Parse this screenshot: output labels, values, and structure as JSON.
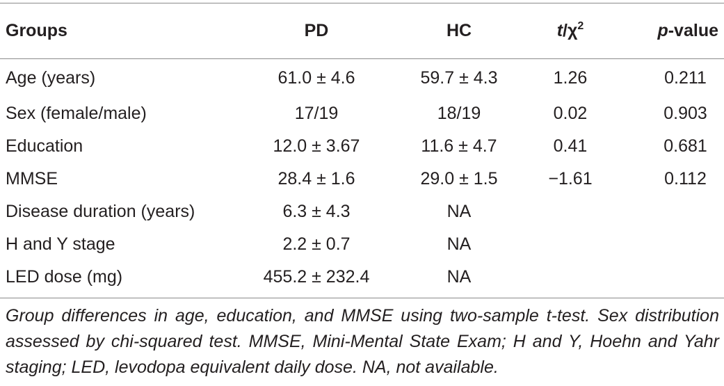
{
  "table": {
    "headers": {
      "groups": "Groups",
      "pd": "PD",
      "hc": "HC",
      "stat_t": "t",
      "stat_sep": "/χ",
      "stat_sup": "2",
      "p_italic": "p",
      "p_rest": "-value"
    },
    "rows": [
      {
        "label": "Age (years)",
        "pd": "61.0 ± 4.6",
        "hc": "59.7 ± 4.3",
        "stat": "1.26",
        "p": "0.211"
      },
      {
        "label": "Sex (female/male)",
        "pd": "17/19",
        "hc": "18/19",
        "stat": "0.02",
        "p": "0.903"
      },
      {
        "label": "Education",
        "pd": "12.0 ± 3.67",
        "hc": "11.6 ± 4.7",
        "stat": "0.41",
        "p": "0.681"
      },
      {
        "label": "MMSE",
        "pd": "28.4 ± 1.6",
        "hc": "29.0 ± 1.5",
        "stat": "−1.61",
        "p": "0.112"
      },
      {
        "label": "Disease duration (years)",
        "pd": "6.3 ± 4.3",
        "hc": "NA",
        "stat": "",
        "p": ""
      },
      {
        "label": "H and Y stage",
        "pd": "2.2 ± 0.7",
        "hc": "NA",
        "stat": "",
        "p": ""
      },
      {
        "label": "LED dose (mg)",
        "pd": "455.2 ± 232.4",
        "hc": "NA",
        "stat": "",
        "p": ""
      }
    ]
  },
  "footnote": "Group differences in age, education, and MMSE using two-sample t-test. Sex distribution assessed by chi-squared test. MMSE, Mini-Mental State Exam; H and Y, Hoehn and Yahr staging; LED, levodopa equivalent daily dose. NA, not available."
}
